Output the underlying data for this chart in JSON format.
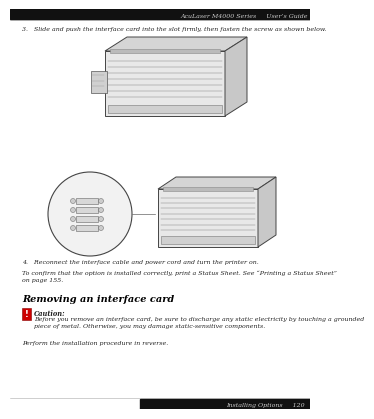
{
  "bg_color": "#ffffff",
  "header_bg": "#111111",
  "header_text": "AcuLaser M4000 Series     User’s Guide",
  "header_text_color": "#cccccc",
  "footer_bg": "#111111",
  "footer_text": "Installing Options     120",
  "footer_text_color": "#cccccc",
  "step3_text": "3.   Slide and push the interface card into the slot firmly, then fasten the screw as shown below.",
  "step4_text": "4.   Reconnect the interface cable and power cord and turn the printer on.",
  "confirm_text": "To confirm that the option is installed correctly, print a Status Sheet. See “Printing a Status Sheet”\non page 155.",
  "section_title": "Removing an interface card",
  "caution_label": "Caution:",
  "caution_body": "Before you remove an interface card, be sure to discharge any static electricity by touching a grounded\npiece of metal. Otherwise, you may damage static-sensitive components.",
  "perform_text": "Perform the installation procedure in reverse.",
  "line_color": "#aaaaaa",
  "caution_icon_color": "#cc0000",
  "section_title_color": "#000000",
  "body_text_color": "#222222",
  "font_size_header": 4.5,
  "font_size_body": 4.5,
  "font_size_section": 7.0,
  "font_size_caution_label": 4.8,
  "font_size_step": 4.5
}
